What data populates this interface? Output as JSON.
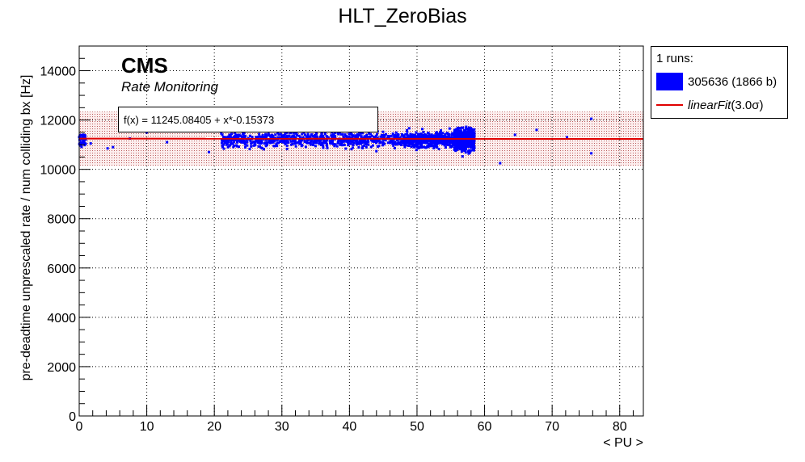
{
  "chart_data": {
    "type": "scatter",
    "title": "HLT_ZeroBias",
    "xlabel": "< PU >",
    "ylabel": "pre-deadtime unprescaled rate / num colliding bx [Hz]",
    "xlim": [
      0,
      83.5
    ],
    "ylim": [
      0,
      15000
    ],
    "x_ticks": [
      0,
      10,
      20,
      30,
      40,
      50,
      60,
      70,
      80
    ],
    "y_ticks": [
      0,
      2000,
      4000,
      6000,
      8000,
      10000,
      12000,
      14000
    ],
    "grid": true,
    "legend_placement": "outside-top-right",
    "series": [
      {
        "name": "305636 (1866 b)",
        "color": "#0000ff",
        "points_count": 1866,
        "clusters": [
          {
            "x_range": [
              21,
              58.5
            ],
            "y_center": 11200,
            "y_spread": 550
          },
          {
            "x_range": [
              0,
              1
            ],
            "y_center": 11200,
            "y_spread": 400
          }
        ],
        "outliers": [
          [
            1.7,
            11050
          ],
          [
            4.2,
            10850
          ],
          [
            5,
            10900
          ],
          [
            7.5,
            11250
          ],
          [
            10,
            11500
          ],
          [
            13,
            11100
          ],
          [
            19.2,
            10700
          ],
          [
            62.3,
            10250
          ],
          [
            64.5,
            11400
          ],
          [
            67.7,
            11600
          ],
          [
            72.2,
            11300
          ],
          [
            75.8,
            10650
          ],
          [
            75.8,
            12050
          ]
        ]
      }
    ],
    "fit": {
      "label": "linearFit",
      "sigma_label": "(3.0σ)",
      "intercept": 11245.08405,
      "slope": -0.15373,
      "band_low": 10140,
      "band_high": 12340,
      "band_x_range": [
        0,
        83.5
      ],
      "color": "#e00000"
    }
  },
  "annotations": {
    "experiment": "CMS",
    "subtitle": "Rate Monitoring",
    "fit_formula": "f(x) = 11245.08405 + x*-0.15373"
  },
  "legend": {
    "header": "1 runs:",
    "entries": [
      {
        "label": "305636 (1866 b)",
        "kind": "box"
      },
      {
        "label": "linearFit",
        "suffix": "(3.0σ)",
        "kind": "line"
      }
    ]
  }
}
